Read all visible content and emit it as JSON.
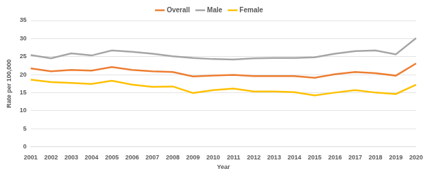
{
  "chart_data": {
    "type": "line",
    "x_label": "Year",
    "y_label": "Rate per 100,000",
    "categories": [
      "2001",
      "2002",
      "2003",
      "2004",
      "2005",
      "2006",
      "2007",
      "2008",
      "2009",
      "2010",
      "2011",
      "2012",
      "2013",
      "2014",
      "2015",
      "2016",
      "2017",
      "2018",
      "2019",
      "2020"
    ],
    "series": [
      {
        "name": "Overall",
        "color": "#ed7d31",
        "values": [
          21.7,
          20.9,
          21.3,
          21.1,
          22.1,
          21.3,
          20.9,
          20.7,
          19.5,
          19.7,
          19.9,
          19.6,
          19.6,
          19.6,
          19.1,
          20.1,
          20.7,
          20.4,
          19.7,
          23.1
        ]
      },
      {
        "name": "Male",
        "color": "#a5a5a5",
        "values": [
          25.4,
          24.5,
          25.9,
          25.3,
          26.7,
          26.3,
          25.8,
          25.1,
          24.6,
          24.3,
          24.2,
          24.5,
          24.6,
          24.6,
          24.8,
          25.8,
          26.5,
          26.7,
          25.6,
          30.1
        ]
      },
      {
        "name": "Female",
        "color": "#ffc000",
        "values": [
          18.6,
          17.9,
          17.7,
          17.4,
          18.3,
          17.2,
          16.6,
          16.7,
          14.9,
          15.7,
          16.1,
          15.3,
          15.3,
          15.1,
          14.2,
          15.0,
          15.7,
          15.0,
          14.6,
          17.2
        ]
      }
    ],
    "ylim": [
      0,
      35
    ],
    "yticks": [
      0,
      5,
      10,
      15,
      20,
      25,
      30,
      35
    ],
    "grid": true,
    "legend": "top"
  }
}
